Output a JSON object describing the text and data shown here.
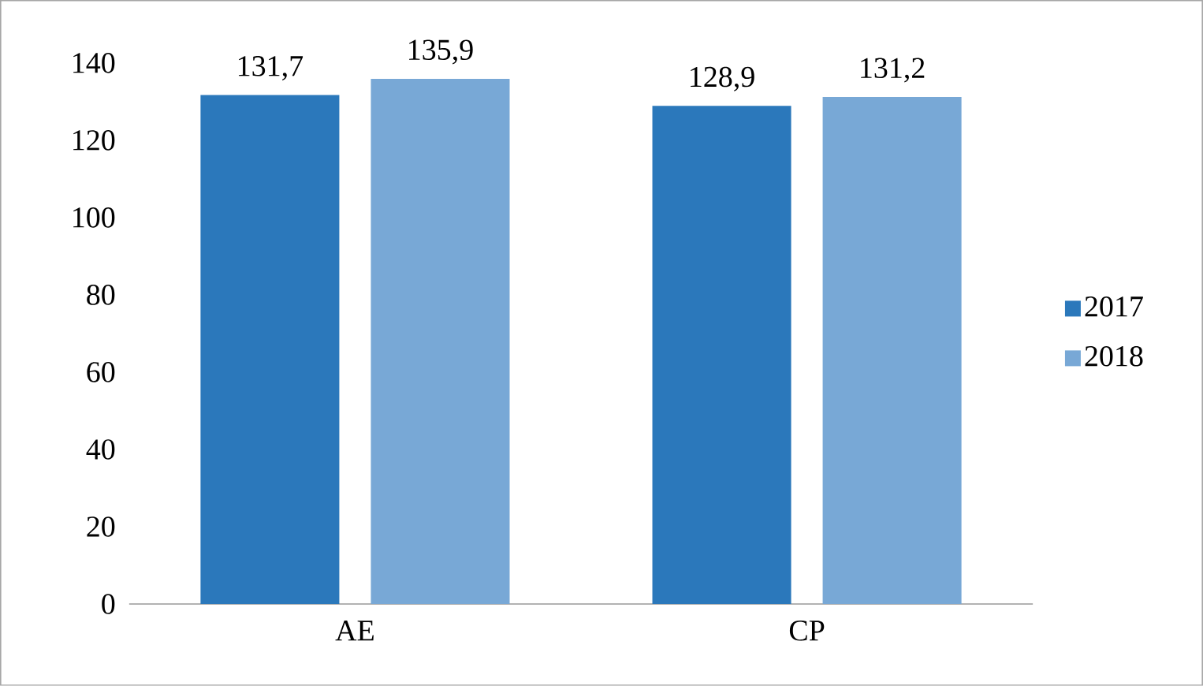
{
  "chart_data": {
    "type": "bar",
    "categories": [
      "AE",
      "CP"
    ],
    "series": [
      {
        "name": "2017",
        "color": "#2b78bb",
        "values": [
          131.7,
          128.9
        ],
        "value_labels": [
          "131,7",
          "128,9"
        ]
      },
      {
        "name": "2018",
        "color": "#78a8d6",
        "values": [
          135.9,
          131.2
        ],
        "value_labels": [
          "135,9",
          "131,2"
        ]
      }
    ],
    "ylim": [
      0,
      140
    ],
    "yticks": [
      0,
      20,
      40,
      60,
      80,
      100,
      120,
      140
    ],
    "grid": false,
    "legend": "right"
  }
}
